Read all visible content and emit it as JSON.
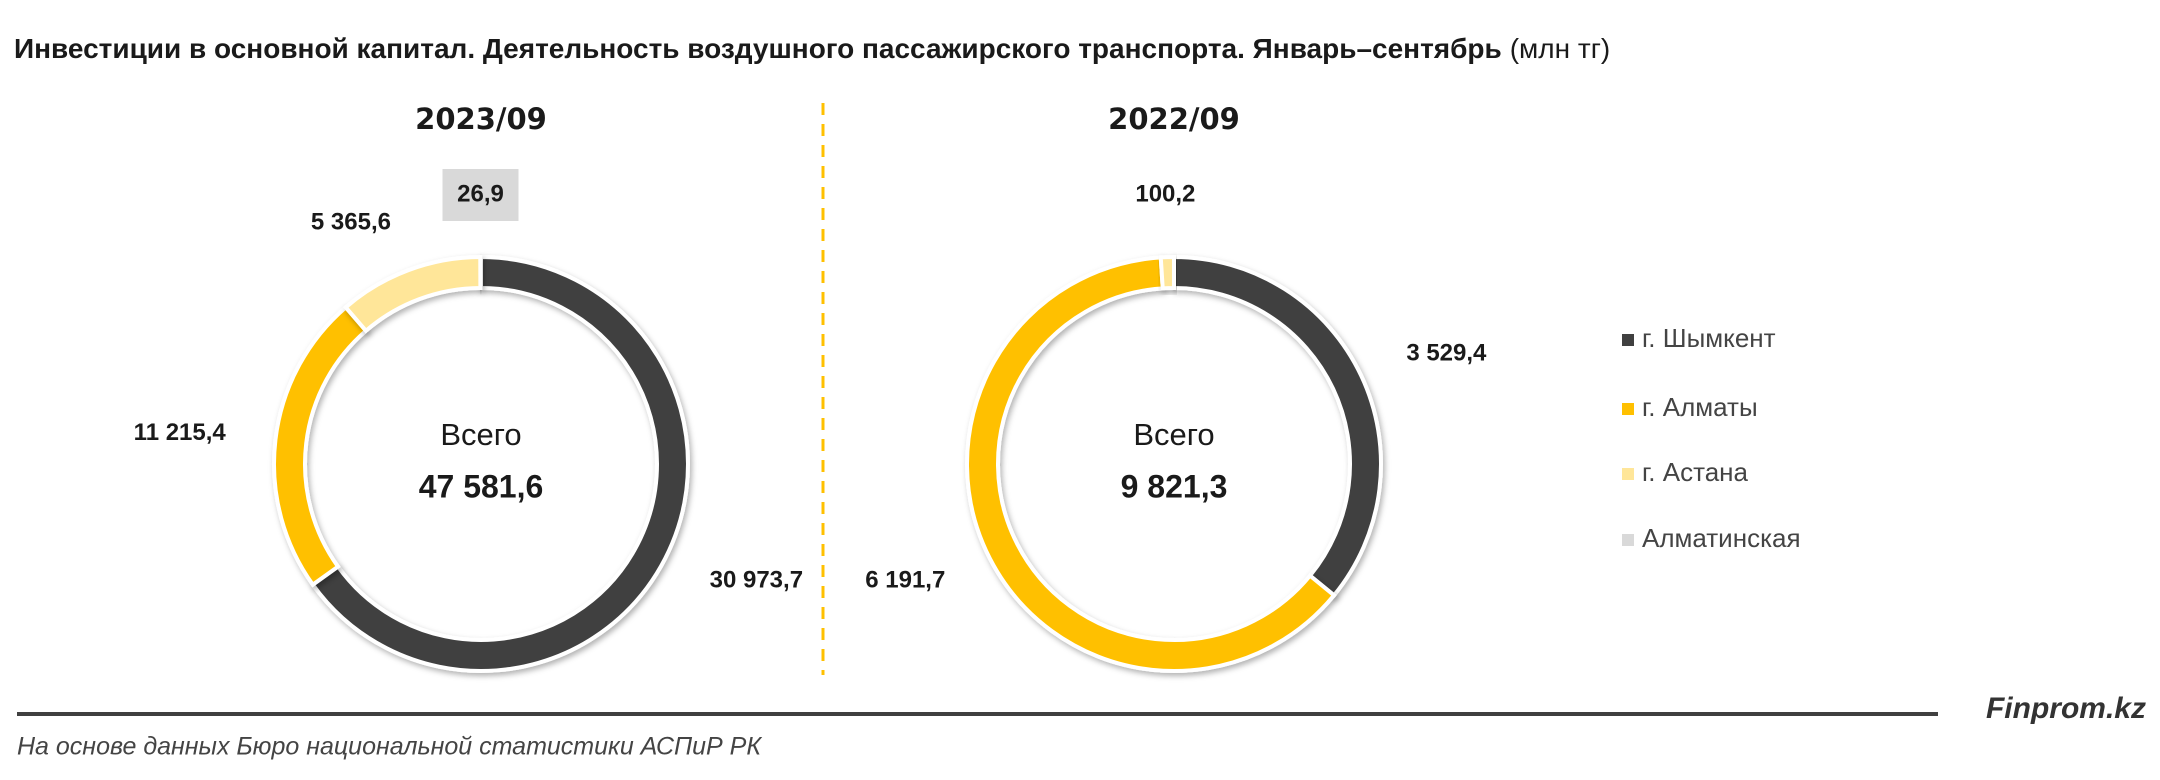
{
  "title": "Инвестиции в основной капитал. Деятельность воздушного пассажирского транспорта. Январь–сентябрь",
  "unit": "(млн тг)",
  "source": "На основе данных Бюро национальной статистики АСПиР РК",
  "brand": "Finprom.kz",
  "chart_data": [
    {
      "type": "pie",
      "title": "2023/09",
      "categories": [
        "г. Шымкент",
        "г. Алматы",
        "г. Астана",
        "Алматинская"
      ],
      "colors": [
        "#404040",
        "#FFC000",
        "#FFE699",
        "#D9D9D9"
      ],
      "values": [
        30973.7,
        11215.4,
        5365.6,
        26.9
      ],
      "value_labels": [
        "30 973,7",
        "11 215,4",
        "5 365,6",
        "26,9"
      ],
      "center_label": "Всего",
      "total": {
        "value": 47581.6,
        "label": "47 581,6"
      },
      "legend": "right"
    },
    {
      "type": "pie",
      "title": "2022/09",
      "categories": [
        "г. Шымкент",
        "г. Алматы",
        "г. Астана",
        "Алматинская"
      ],
      "colors": [
        "#404040",
        "#FFC000",
        "#FFE699",
        "#D9D9D9"
      ],
      "values": [
        3529.4,
        6191.7,
        100.2,
        null
      ],
      "value_labels": [
        "3 529,4",
        "6 191,7",
        "100,2",
        null
      ],
      "center_label": "Всего",
      "total": {
        "value": 9821.3,
        "label": "9 821,3"
      }
    }
  ]
}
